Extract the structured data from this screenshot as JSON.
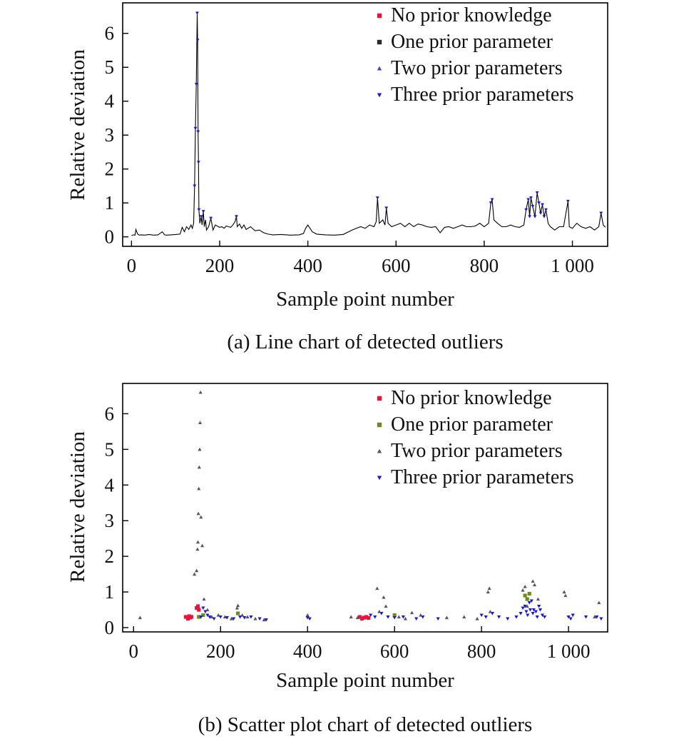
{
  "chart_data": [
    {
      "type": "line",
      "caption": "(a) Line chart of detected outliers",
      "xlabel": "Sample point number",
      "ylabel": "Relative deviation",
      "xlim": [
        -20,
        1080
      ],
      "ylim": [
        -0.28,
        6.9
      ],
      "xticks": [
        0,
        200,
        400,
        600,
        800,
        1000
      ],
      "xtick_labels": [
        "0",
        "200",
        "400",
        "600",
        "800",
        "1 000"
      ],
      "yticks": [
        0,
        1,
        2,
        3,
        4,
        5,
        6
      ],
      "ytick_labels": [
        "0",
        "1",
        "2",
        "3",
        "4",
        "5",
        "6"
      ],
      "grid": false,
      "legend_position": "top-right",
      "series": [
        {
          "name": "No prior knowledge",
          "marker": "square",
          "color": "#e8143c"
        },
        {
          "name": "One prior parameter",
          "marker": "square",
          "color": "#2a2a2a"
        },
        {
          "name": "Two prior parameters",
          "marker": "triangle-up",
          "color": "#4a3ad8"
        },
        {
          "name": "Three prior parameters",
          "marker": "triangle-down",
          "color": "#1a1ac8"
        }
      ],
      "x": [
        0,
        5,
        8,
        10,
        14,
        18,
        22,
        30,
        40,
        50,
        60,
        70,
        75,
        80,
        90,
        100,
        110,
        115,
        120,
        125,
        130,
        135,
        138,
        141,
        143,
        145,
        147,
        149,
        150,
        151,
        152,
        153,
        155,
        158,
        160,
        163,
        165,
        168,
        170,
        175,
        180,
        185,
        190,
        200,
        205,
        210,
        215,
        220,
        225,
        230,
        235,
        238,
        240,
        245,
        250,
        255,
        260,
        270,
        280,
        290,
        300,
        310,
        320,
        340,
        360,
        380,
        390,
        395,
        400,
        405,
        410,
        420,
        440,
        460,
        480,
        500,
        510,
        520,
        530,
        540,
        550,
        555,
        558,
        562,
        570,
        575,
        578,
        582,
        590,
        600,
        610,
        620,
        630,
        640,
        650,
        660,
        670,
        680,
        690,
        700,
        710,
        720,
        730,
        740,
        750,
        760,
        770,
        780,
        790,
        800,
        810,
        815,
        818,
        822,
        830,
        840,
        850,
        860,
        870,
        880,
        890,
        895,
        900,
        903,
        906,
        910,
        915,
        920,
        924,
        928,
        932,
        936,
        940,
        945,
        950,
        960,
        970,
        980,
        990,
        993,
        1000,
        1010,
        1020,
        1030,
        1040,
        1050,
        1060,
        1065,
        1070,
        1075
      ],
      "values": [
        0.04,
        0.06,
        0.05,
        0.22,
        0.08,
        0.05,
        0.06,
        0.05,
        0.07,
        0.05,
        0.06,
        0.15,
        0.06,
        0.05,
        0.06,
        0.07,
        0.08,
        0.28,
        0.15,
        0.3,
        0.22,
        0.35,
        0.25,
        0.4,
        1.5,
        3.2,
        4.5,
        6.6,
        5.8,
        3.1,
        2.2,
        0.8,
        0.4,
        0.6,
        0.35,
        0.75,
        0.3,
        0.5,
        0.2,
        0.3,
        0.55,
        0.2,
        0.35,
        0.28,
        0.3,
        0.25,
        0.32,
        0.3,
        0.28,
        0.35,
        0.45,
        0.6,
        0.3,
        0.38,
        0.25,
        0.35,
        0.22,
        0.3,
        0.18,
        0.2,
        0.12,
        0.08,
        0.06,
        0.07,
        0.05,
        0.06,
        0.1,
        0.25,
        0.35,
        0.25,
        0.15,
        0.08,
        0.06,
        0.05,
        0.07,
        0.2,
        0.25,
        0.3,
        0.25,
        0.35,
        0.3,
        0.45,
        1.15,
        0.4,
        0.5,
        0.35,
        0.85,
        0.4,
        0.3,
        0.35,
        0.4,
        0.3,
        0.4,
        0.3,
        0.38,
        0.35,
        0.3,
        0.28,
        0.3,
        0.12,
        0.28,
        0.3,
        0.25,
        0.3,
        0.35,
        0.3,
        0.3,
        0.32,
        0.4,
        0.3,
        0.4,
        1.0,
        1.1,
        0.5,
        0.4,
        0.3,
        0.3,
        0.35,
        0.3,
        0.28,
        0.35,
        0.8,
        1.1,
        0.6,
        1.15,
        0.9,
        0.6,
        1.3,
        1.0,
        0.7,
        0.95,
        0.6,
        0.8,
        0.4,
        0.3,
        0.2,
        0.3,
        0.3,
        1.05,
        0.3,
        0.25,
        0.4,
        0.3,
        0.25,
        0.3,
        0.2,
        0.3,
        0.7,
        0.35,
        0.28
      ]
    },
    {
      "type": "scatter",
      "caption": "(b) Scatter plot chart of detected outliers",
      "xlabel": "Sample point number",
      "ylabel": "Relative deviation",
      "xlim": [
        -25,
        1090
      ],
      "ylim": [
        -0.12,
        6.85
      ],
      "xticks": [
        0,
        200,
        400,
        600,
        800,
        1000
      ],
      "xtick_labels": [
        "0",
        "200",
        "400",
        "600",
        "800",
        "1 000"
      ],
      "yticks": [
        0,
        1,
        2,
        3,
        4,
        5,
        6
      ],
      "ytick_labels": [
        "0",
        "1",
        "2",
        "3",
        "4",
        "5",
        "6"
      ],
      "grid": false,
      "legend_position": "top-right",
      "series": [
        {
          "name": "No prior knowledge",
          "marker": "square",
          "color": "#e8143c",
          "x": [
            120,
            125,
            128,
            130,
            133,
            145,
            148,
            150,
            520,
            525,
            530,
            535,
            540
          ],
          "y": [
            0.3,
            0.25,
            0.32,
            0.28,
            0.3,
            0.55,
            0.6,
            0.5,
            0.3,
            0.25,
            0.28,
            0.3,
            0.27
          ]
        },
        {
          "name": "One prior parameter",
          "marker": "square",
          "color": "#6b8c1e",
          "x": [
            150,
            160,
            240,
            600,
            900,
            905,
            910
          ],
          "y": [
            0.3,
            0.35,
            0.4,
            0.35,
            0.9,
            0.8,
            0.95
          ]
        },
        {
          "name": "Two prior parameters",
          "marker": "triangle-up",
          "color": "#555566",
          "x": [
            15,
            140,
            145,
            147,
            148,
            149,
            150,
            151,
            152,
            153,
            154,
            155,
            158,
            162,
            170,
            180,
            195,
            210,
            225,
            238,
            240,
            250,
            262,
            280,
            300,
            400,
            500,
            515,
            560,
            565,
            575,
            580,
            610,
            625,
            640,
            660,
            720,
            760,
            790,
            815,
            818,
            820,
            895,
            900,
            905,
            918,
            922,
            930,
            990,
            993,
            1060,
            1070
          ],
          "y": [
            0.28,
            1.5,
            1.6,
            2.2,
            2.4,
            3.2,
            3.9,
            4.5,
            5.0,
            5.75,
            6.6,
            3.1,
            2.3,
            0.8,
            0.5,
            0.3,
            0.35,
            0.3,
            0.25,
            0.55,
            0.62,
            0.35,
            0.3,
            0.25,
            0.22,
            0.35,
            0.3,
            0.28,
            1.1,
            0.45,
            0.85,
            0.6,
            0.3,
            0.25,
            0.42,
            0.35,
            0.28,
            0.3,
            0.25,
            1.0,
            1.1,
            0.45,
            1.05,
            1.15,
            0.6,
            1.3,
            1.2,
            0.8,
            1.0,
            0.9,
            0.3,
            0.7
          ]
        },
        {
          "name": "Three prior parameters",
          "marker": "triangle-down",
          "color": "#1a1ad0",
          "x": [
            155,
            160,
            165,
            170,
            175,
            185,
            200,
            215,
            230,
            245,
            255,
            270,
            290,
            305,
            400,
            405,
            545,
            555,
            570,
            585,
            600,
            620,
            650,
            665,
            700,
            800,
            810,
            825,
            840,
            860,
            880,
            890,
            895,
            900,
            903,
            906,
            910,
            912,
            915,
            918,
            920,
            925,
            928,
            932,
            935,
            940,
            945,
            1000,
            1005,
            1010,
            1040,
            1065,
            1075
          ],
          "y": [
            0.3,
            0.55,
            0.45,
            0.35,
            0.3,
            0.25,
            0.3,
            0.28,
            0.25,
            0.3,
            0.28,
            0.3,
            0.25,
            0.22,
            0.28,
            0.25,
            0.35,
            0.3,
            0.4,
            0.3,
            0.28,
            0.3,
            0.25,
            0.3,
            0.25,
            0.35,
            0.3,
            0.4,
            0.3,
            0.25,
            0.3,
            0.4,
            0.55,
            0.6,
            0.45,
            0.35,
            0.7,
            0.5,
            0.75,
            0.4,
            0.5,
            0.45,
            0.3,
            0.6,
            0.5,
            0.35,
            0.3,
            0.3,
            0.25,
            0.35,
            0.3,
            0.3,
            0.25
          ]
        }
      ]
    }
  ]
}
